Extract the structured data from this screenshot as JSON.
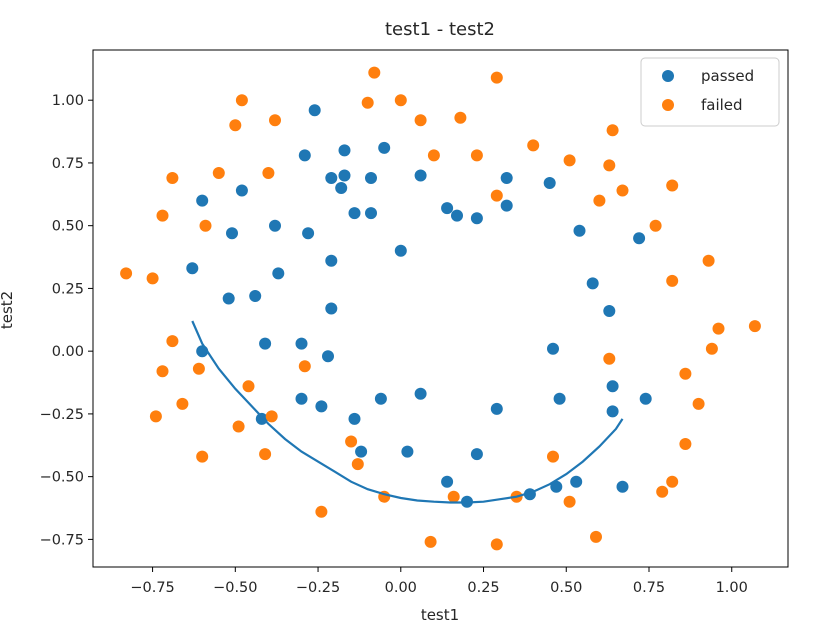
{
  "chart_data": {
    "type": "scatter",
    "title": "test1 - test2",
    "xlabel": "test1",
    "ylabel": "test2",
    "xlim": [
      -0.93,
      1.17
    ],
    "ylim": [
      -0.86,
      1.2
    ],
    "xticks": [
      -0.75,
      -0.5,
      -0.25,
      0.0,
      0.25,
      0.5,
      0.75,
      1.0
    ],
    "xtick_labels": [
      "−0.75",
      "−0.50",
      "−0.25",
      "0.00",
      "0.25",
      "0.50",
      "0.75",
      "1.00"
    ],
    "yticks": [
      -0.75,
      -0.5,
      -0.25,
      0.0,
      0.25,
      0.5,
      0.75,
      1.0
    ],
    "ytick_labels": [
      "−0.75",
      "−0.50",
      "−0.25",
      "0.00",
      "0.25",
      "0.50",
      "0.75",
      "1.00"
    ],
    "grid": false,
    "legend_position": "top-right",
    "series": [
      {
        "name": "passed",
        "color": "#1f77b4",
        "points": [
          [
            -0.26,
            0.96
          ],
          [
            -0.05,
            0.81
          ],
          [
            -0.17,
            0.8
          ],
          [
            -0.29,
            0.78
          ],
          [
            -0.21,
            0.69
          ],
          [
            -0.17,
            0.7
          ],
          [
            -0.09,
            0.69
          ],
          [
            0.06,
            0.7
          ],
          [
            -0.18,
            0.65
          ],
          [
            -0.48,
            0.64
          ],
          [
            -0.6,
            0.6
          ],
          [
            0.45,
            0.67
          ],
          [
            0.32,
            0.69
          ],
          [
            -0.14,
            0.55
          ],
          [
            -0.09,
            0.55
          ],
          [
            0.14,
            0.57
          ],
          [
            0.17,
            0.54
          ],
          [
            0.23,
            0.53
          ],
          [
            0.32,
            0.58
          ],
          [
            -0.51,
            0.47
          ],
          [
            -0.38,
            0.5
          ],
          [
            -0.28,
            0.47
          ],
          [
            0.54,
            0.48
          ],
          [
            0.72,
            0.45
          ],
          [
            0.0,
            0.4
          ],
          [
            -0.63,
            0.33
          ],
          [
            -0.21,
            0.36
          ],
          [
            -0.37,
            0.31
          ],
          [
            -0.52,
            0.21
          ],
          [
            -0.44,
            0.22
          ],
          [
            0.58,
            0.27
          ],
          [
            -0.21,
            0.17
          ],
          [
            0.63,
            0.16
          ],
          [
            -0.6,
            0.0
          ],
          [
            -0.41,
            0.03
          ],
          [
            -0.3,
            0.03
          ],
          [
            -0.22,
            -0.02
          ],
          [
            0.46,
            0.01
          ],
          [
            0.64,
            -0.14
          ],
          [
            -0.3,
            -0.19
          ],
          [
            -0.24,
            -0.22
          ],
          [
            -0.06,
            -0.19
          ],
          [
            0.06,
            -0.17
          ],
          [
            0.48,
            -0.19
          ],
          [
            0.74,
            -0.19
          ],
          [
            -0.42,
            -0.27
          ],
          [
            -0.14,
            -0.27
          ],
          [
            0.29,
            -0.23
          ],
          [
            0.64,
            -0.24
          ],
          [
            -0.12,
            -0.4
          ],
          [
            0.02,
            -0.4
          ],
          [
            0.23,
            -0.41
          ],
          [
            0.14,
            -0.52
          ],
          [
            0.39,
            -0.57
          ],
          [
            0.47,
            -0.54
          ],
          [
            0.53,
            -0.52
          ],
          [
            0.67,
            -0.54
          ],
          [
            0.2,
            -0.6
          ]
        ]
      },
      {
        "name": "failed",
        "color": "#ff7f0e",
        "points": [
          [
            -0.08,
            1.11
          ],
          [
            0.29,
            1.09
          ],
          [
            -0.48,
            1.0
          ],
          [
            -0.1,
            0.99
          ],
          [
            0.0,
            1.0
          ],
          [
            -0.5,
            0.9
          ],
          [
            -0.38,
            0.92
          ],
          [
            0.06,
            0.92
          ],
          [
            0.18,
            0.93
          ],
          [
            0.64,
            0.88
          ],
          [
            0.4,
            0.82
          ],
          [
            0.1,
            0.78
          ],
          [
            0.23,
            0.78
          ],
          [
            0.51,
            0.76
          ],
          [
            0.63,
            0.74
          ],
          [
            -0.55,
            0.71
          ],
          [
            -0.4,
            0.71
          ],
          [
            -0.69,
            0.69
          ],
          [
            0.82,
            0.66
          ],
          [
            0.67,
            0.64
          ],
          [
            0.29,
            0.62
          ],
          [
            0.6,
            0.6
          ],
          [
            -0.72,
            0.54
          ],
          [
            -0.59,
            0.5
          ],
          [
            0.77,
            0.5
          ],
          [
            -0.83,
            0.31
          ],
          [
            -0.75,
            0.29
          ],
          [
            0.82,
            0.28
          ],
          [
            0.93,
            0.36
          ],
          [
            1.07,
            0.1
          ],
          [
            0.96,
            0.09
          ],
          [
            -0.69,
            0.04
          ],
          [
            0.94,
            0.01
          ],
          [
            -0.61,
            -0.07
          ],
          [
            -0.29,
            -0.06
          ],
          [
            0.63,
            -0.03
          ],
          [
            -0.72,
            -0.08
          ],
          [
            -0.46,
            -0.14
          ],
          [
            0.86,
            -0.09
          ],
          [
            -0.66,
            -0.21
          ],
          [
            -0.74,
            -0.26
          ],
          [
            -0.39,
            -0.26
          ],
          [
            0.9,
            -0.21
          ],
          [
            -0.49,
            -0.3
          ],
          [
            -0.15,
            -0.36
          ],
          [
            0.86,
            -0.37
          ],
          [
            -0.6,
            -0.42
          ],
          [
            -0.41,
            -0.41
          ],
          [
            -0.13,
            -0.45
          ],
          [
            0.46,
            -0.42
          ],
          [
            -0.05,
            -0.58
          ],
          [
            0.16,
            -0.58
          ],
          [
            0.35,
            -0.58
          ],
          [
            0.51,
            -0.6
          ],
          [
            0.82,
            -0.52
          ],
          [
            0.79,
            -0.56
          ],
          [
            -0.24,
            -0.64
          ],
          [
            0.09,
            -0.76
          ],
          [
            0.29,
            -0.77
          ],
          [
            0.59,
            -0.74
          ]
        ]
      },
      {
        "type": "line",
        "color": "#1f77b4",
        "points": [
          [
            -0.63,
            0.12
          ],
          [
            -0.6,
            0.03
          ],
          [
            -0.55,
            -0.07
          ],
          [
            -0.5,
            -0.15
          ],
          [
            -0.45,
            -0.22
          ],
          [
            -0.4,
            -0.29
          ],
          [
            -0.35,
            -0.35
          ],
          [
            -0.3,
            -0.4
          ],
          [
            -0.25,
            -0.44
          ],
          [
            -0.2,
            -0.48
          ],
          [
            -0.15,
            -0.52
          ],
          [
            -0.1,
            -0.55
          ],
          [
            -0.05,
            -0.57
          ],
          [
            0.0,
            -0.585
          ],
          [
            0.05,
            -0.595
          ],
          [
            0.1,
            -0.6
          ],
          [
            0.15,
            -0.603
          ],
          [
            0.2,
            -0.603
          ],
          [
            0.25,
            -0.6
          ],
          [
            0.3,
            -0.59
          ],
          [
            0.35,
            -0.58
          ],
          [
            0.4,
            -0.56
          ],
          [
            0.45,
            -0.53
          ],
          [
            0.5,
            -0.49
          ],
          [
            0.55,
            -0.44
          ],
          [
            0.6,
            -0.38
          ],
          [
            0.65,
            -0.31
          ],
          [
            0.67,
            -0.27
          ]
        ]
      }
    ]
  }
}
